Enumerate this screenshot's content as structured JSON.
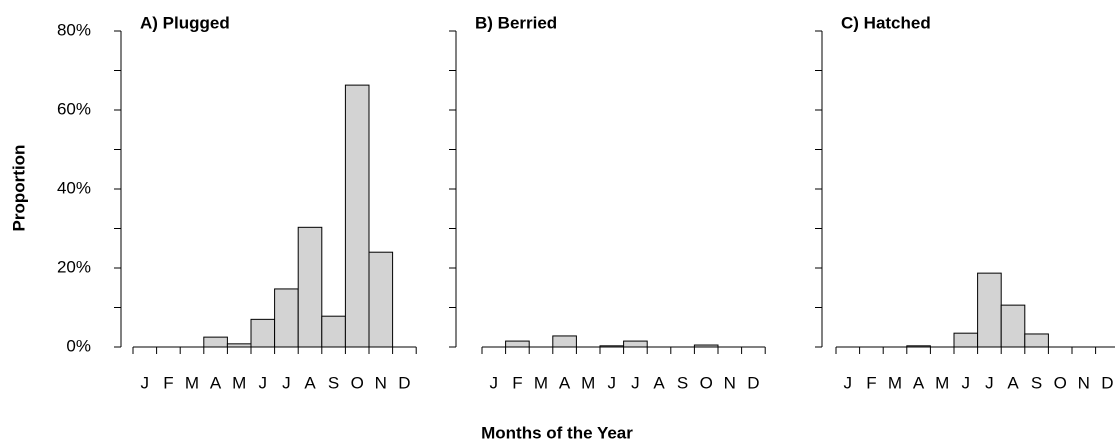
{
  "chart_data": [
    {
      "type": "bar",
      "title": "A) Plugged",
      "ylabel": "Proportion",
      "categories": [
        "J",
        "F",
        "M",
        "A",
        "M",
        "J",
        "J",
        "A",
        "S",
        "O",
        "N",
        "D"
      ],
      "values": [
        0,
        0,
        0,
        2.5,
        0.8,
        7,
        14.7,
        30.3,
        7.8,
        66.3,
        24,
        0
      ],
      "color": "#d3d3d3",
      "ylim": [
        0,
        80
      ],
      "yticks": [
        {
          "value": 0,
          "label": "0%"
        },
        {
          "value": 20,
          "label": "20%"
        },
        {
          "value": 40,
          "label": "40%"
        },
        {
          "value": 60,
          "label": "60%"
        },
        {
          "value": 80,
          "label": "80%"
        }
      ],
      "yminor": [
        10,
        30,
        50,
        70
      ]
    },
    {
      "type": "bar",
      "title": "B) Berried",
      "xlabel": "Months of the Year",
      "categories": [
        "J",
        "F",
        "M",
        "A",
        "M",
        "J",
        "J",
        "A",
        "S",
        "O",
        "N",
        "D"
      ],
      "values": [
        0,
        1.5,
        0,
        2.8,
        0,
        0.3,
        1.5,
        0,
        0,
        0.5,
        0,
        0
      ],
      "color": "#d3d3d3",
      "ylim": [
        0,
        80
      ],
      "yticks": [
        0,
        10,
        20,
        30,
        40,
        50,
        60,
        70,
        80
      ]
    },
    {
      "type": "bar",
      "title": "C) Hatched",
      "categories": [
        "J",
        "F",
        "M",
        "A",
        "M",
        "J",
        "J",
        "A",
        "S",
        "O",
        "N",
        "D"
      ],
      "values": [
        0,
        0,
        0,
        0.3,
        0,
        3.5,
        18.7,
        10.6,
        3.3,
        0,
        0,
        0
      ],
      "color": "#d3d3d3",
      "ylim": [
        0,
        80
      ],
      "yticks": [
        0,
        10,
        20,
        30,
        40,
        50,
        60,
        70,
        80
      ]
    }
  ]
}
